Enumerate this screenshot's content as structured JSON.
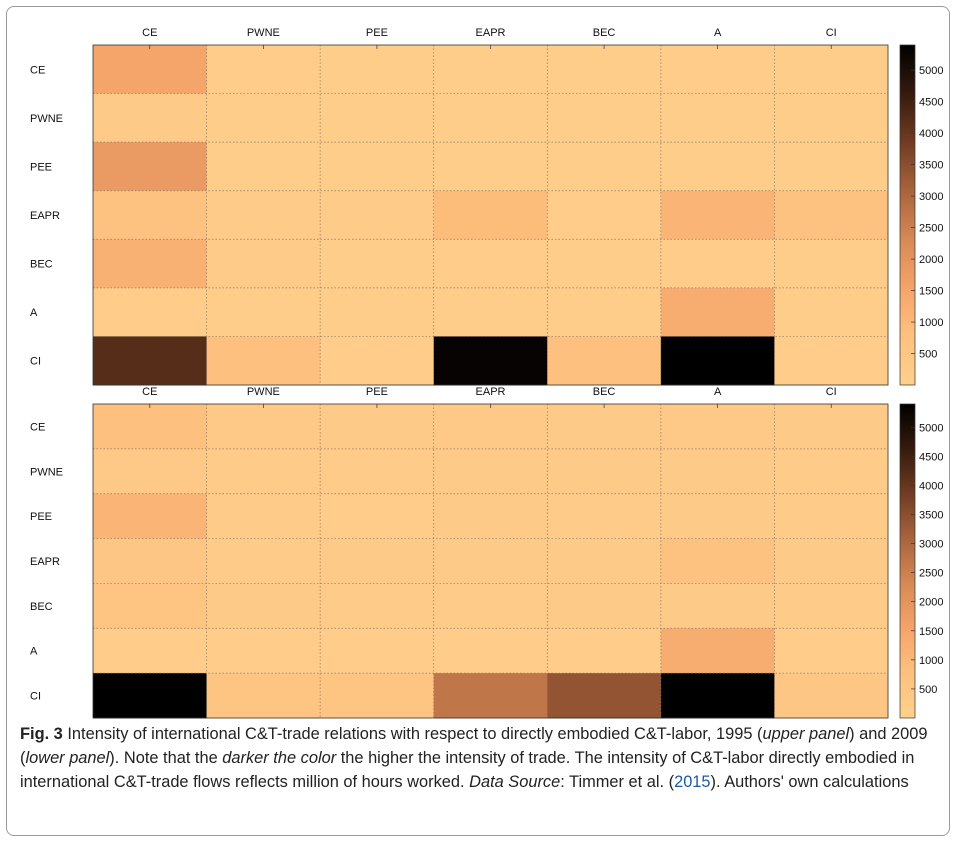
{
  "caption": {
    "fig_label": "Fig. 3",
    "t1": "  Intensity of international C&T-trade relations with respect to directly embodied C&T-labor, 1995 (",
    "i1": "upper panel",
    "t2": ") and 2009 (",
    "i2": "lower panel",
    "t3": "). Note that the ",
    "i3": "darker the color",
    "t4": " the higher the intensity of trade. The intensity of C&T-labor directly embodied in international C&T-trade flows reflects million of hours worked. ",
    "i4": "Data Source",
    "t5": ": Timmer et al. (",
    "ref_year": "2015",
    "t6": "). Authors' own calculations"
  },
  "chart_data": [
    {
      "type": "heatmap",
      "panel": "1995",
      "x_categories": [
        "CE",
        "PWNE",
        "PEE",
        "EAPR",
        "BEC",
        "A",
        "CI"
      ],
      "y_categories": [
        "CE",
        "PWNE",
        "PEE",
        "EAPR",
        "BEC",
        "A",
        "CI"
      ],
      "values": [
        [
          1500,
          200,
          150,
          150,
          150,
          200,
          150
        ],
        [
          300,
          150,
          150,
          150,
          150,
          150,
          150
        ],
        [
          1800,
          150,
          150,
          150,
          150,
          150,
          150
        ],
        [
          700,
          250,
          250,
          900,
          200,
          1100,
          700
        ],
        [
          1200,
          250,
          150,
          200,
          150,
          200,
          150
        ],
        [
          200,
          150,
          150,
          150,
          150,
          1300,
          150
        ],
        [
          4200,
          800,
          200,
          5300,
          800,
          5400,
          200
        ]
      ],
      "colorbar_ticks": [
        500,
        1000,
        1500,
        2000,
        2500,
        3000,
        3500,
        4000,
        4500,
        5000
      ],
      "zlim": [
        0,
        5400
      ],
      "grid": true
    },
    {
      "type": "heatmap",
      "panel": "2009",
      "x_categories": [
        "CE",
        "PWNE",
        "PEE",
        "EAPR",
        "BEC",
        "A",
        "CI"
      ],
      "y_categories": [
        "CE",
        "PWNE",
        "PEE",
        "EAPR",
        "BEC",
        "A",
        "CI"
      ],
      "values": [
        [
          800,
          400,
          300,
          350,
          300,
          400,
          300
        ],
        [
          400,
          250,
          250,
          300,
          300,
          300,
          250
        ],
        [
          1100,
          250,
          200,
          300,
          250,
          300,
          250
        ],
        [
          500,
          250,
          300,
          300,
          300,
          700,
          300
        ],
        [
          600,
          300,
          250,
          250,
          300,
          300,
          250
        ],
        [
          200,
          200,
          200,
          200,
          200,
          1300,
          200
        ],
        [
          5400,
          600,
          600,
          2700,
          3400,
          5400,
          500
        ]
      ],
      "colorbar_ticks": [
        500,
        1000,
        1500,
        2000,
        2500,
        3000,
        3500,
        4000,
        4500,
        5000
      ],
      "zlim": [
        0,
        5400
      ],
      "grid": true
    }
  ]
}
